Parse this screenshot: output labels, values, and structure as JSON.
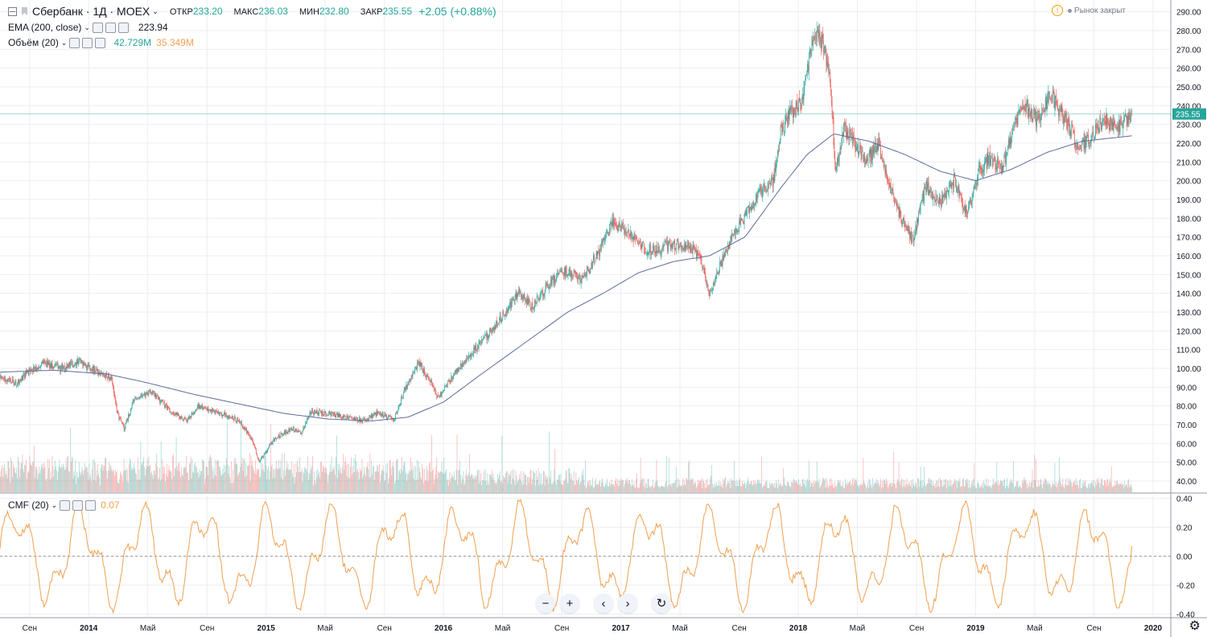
{
  "header": {
    "symbol": "Сбербанк · 1Д · MOEX",
    "open_label": "ОТКР",
    "open": "233.20",
    "high_label": "МАКС",
    "high": "236.03",
    "low_label": "МИН",
    "low": "232.80",
    "close_label": "ЗАКР",
    "close": "235.55",
    "change": "+2.05 (+0.88%)",
    "market_status": "Рынок закрыт"
  },
  "indicators": {
    "ema": {
      "name": "EMA (200, close)",
      "value": "223.94"
    },
    "volume": {
      "name": "Объём (20)",
      "value": "42.729M",
      "ma_value": "35.349M"
    },
    "cmf": {
      "name": "CMF (20)",
      "value": "0.07"
    }
  },
  "price_badge": "235.55",
  "colors": {
    "up": "#26a69a",
    "down": "#ef5350",
    "ema": "#5d6c9a",
    "cmf": "#f0a050",
    "grid": "#eceef3"
  },
  "chart_data": [
    {
      "type": "candlestick",
      "title": "Сбербанк · 1Д · MOEX",
      "ylim": [
        34,
        292
      ],
      "y_ticks": [
        "290.00",
        "280.00",
        "270.00",
        "260.00",
        "250.00",
        "240.00",
        "230.00",
        "220.00",
        "210.00",
        "200.00",
        "190.00",
        "180.00",
        "170.00",
        "160.00",
        "150.00",
        "140.00",
        "130.00",
        "120.00",
        "110.00",
        "100.00",
        "90.00",
        "80.00",
        "70.00",
        "60.00",
        "50.00",
        "40.00"
      ],
      "x_ticks": [
        "Сен",
        "2014",
        "Май",
        "Сен",
        "2015",
        "Май",
        "Сен",
        "2016",
        "Май",
        "Сен",
        "2017",
        "Май",
        "Сен",
        "2018",
        "Май",
        "Сен",
        "2019",
        "Май",
        "Сен",
        "2020"
      ],
      "x_tick_pos": [
        2013.667,
        2014.0,
        2014.333,
        2014.667,
        2015.0,
        2015.333,
        2015.667,
        2016.0,
        2016.333,
        2016.667,
        2017.0,
        2017.333,
        2017.667,
        2018.0,
        2018.333,
        2018.667,
        2019.0,
        2019.333,
        2019.667,
        2020.0
      ],
      "xlim": [
        2013.5,
        2020.1
      ],
      "last_date": 2019.88,
      "price_path": [
        [
          2013.5,
          95
        ],
        [
          2013.6,
          92
        ],
        [
          2013.65,
          98
        ],
        [
          2013.75,
          103
        ],
        [
          2013.85,
          100
        ],
        [
          2013.95,
          104
        ],
        [
          2014.05,
          98
        ],
        [
          2014.13,
          95
        ],
        [
          2014.16,
          76
        ],
        [
          2014.2,
          68
        ],
        [
          2014.25,
          82
        ],
        [
          2014.35,
          88
        ],
        [
          2014.45,
          78
        ],
        [
          2014.55,
          72
        ],
        [
          2014.62,
          80
        ],
        [
          2014.75,
          76
        ],
        [
          2014.85,
          72
        ],
        [
          2014.92,
          62
        ],
        [
          2014.96,
          50
        ],
        [
          2015.05,
          63
        ],
        [
          2015.15,
          68
        ],
        [
          2015.2,
          65
        ],
        [
          2015.25,
          77
        ],
        [
          2015.35,
          76
        ],
        [
          2015.45,
          74
        ],
        [
          2015.55,
          72
        ],
        [
          2015.62,
          76
        ],
        [
          2015.72,
          73
        ],
        [
          2015.78,
          88
        ],
        [
          2015.86,
          103
        ],
        [
          2015.93,
          92
        ],
        [
          2015.97,
          84
        ],
        [
          2016.05,
          96
        ],
        [
          2016.15,
          107
        ],
        [
          2016.25,
          118
        ],
        [
          2016.35,
          130
        ],
        [
          2016.42,
          140
        ],
        [
          2016.5,
          133
        ],
        [
          2016.6,
          146
        ],
        [
          2016.7,
          152
        ],
        [
          2016.78,
          147
        ],
        [
          2016.88,
          163
        ],
        [
          2016.95,
          178
        ],
        [
          2017.05,
          172
        ],
        [
          2017.15,
          162
        ],
        [
          2017.25,
          165
        ],
        [
          2017.35,
          166
        ],
        [
          2017.4,
          164
        ],
        [
          2017.45,
          158
        ],
        [
          2017.5,
          140
        ],
        [
          2017.55,
          153
        ],
        [
          2017.62,
          168
        ],
        [
          2017.7,
          182
        ],
        [
          2017.8,
          195
        ],
        [
          2017.86,
          200
        ],
        [
          2017.9,
          225
        ],
        [
          2017.95,
          237
        ],
        [
          2018.02,
          240
        ],
        [
          2018.06,
          265
        ],
        [
          2018.1,
          280
        ],
        [
          2018.14,
          272
        ],
        [
          2018.18,
          255
        ],
        [
          2018.21,
          205
        ],
        [
          2018.26,
          228
        ],
        [
          2018.3,
          222
        ],
        [
          2018.38,
          210
        ],
        [
          2018.45,
          220
        ],
        [
          2018.5,
          200
        ],
        [
          2018.6,
          175
        ],
        [
          2018.65,
          168
        ],
        [
          2018.72,
          198
        ],
        [
          2018.8,
          188
        ],
        [
          2018.88,
          200
        ],
        [
          2018.95,
          182
        ],
        [
          2019.02,
          205
        ],
        [
          2019.08,
          212
        ],
        [
          2019.15,
          207
        ],
        [
          2019.22,
          230
        ],
        [
          2019.28,
          240
        ],
        [
          2019.35,
          232
        ],
        [
          2019.42,
          246
        ],
        [
          2019.5,
          233
        ],
        [
          2019.58,
          218
        ],
        [
          2019.65,
          223
        ],
        [
          2019.72,
          233
        ],
        [
          2019.8,
          228
        ],
        [
          2019.88,
          235.55
        ]
      ],
      "ema_path": [
        [
          2013.5,
          98
        ],
        [
          2013.8,
          99
        ],
        [
          2014.1,
          97
        ],
        [
          2014.3,
          93
        ],
        [
          2014.6,
          86
        ],
        [
          2014.9,
          80
        ],
        [
          2015.1,
          76
        ],
        [
          2015.35,
          73
        ],
        [
          2015.6,
          72
        ],
        [
          2015.8,
          74
        ],
        [
          2016.0,
          82
        ],
        [
          2016.2,
          96
        ],
        [
          2016.45,
          113
        ],
        [
          2016.7,
          130
        ],
        [
          2016.9,
          140
        ],
        [
          2017.1,
          151
        ],
        [
          2017.3,
          157
        ],
        [
          2017.5,
          160
        ],
        [
          2017.7,
          170
        ],
        [
          2017.9,
          196
        ],
        [
          2018.05,
          214
        ],
        [
          2018.2,
          225
        ],
        [
          2018.4,
          221
        ],
        [
          2018.6,
          214
        ],
        [
          2018.8,
          205
        ],
        [
          2019.0,
          200
        ],
        [
          2019.2,
          206
        ],
        [
          2019.4,
          215
        ],
        [
          2019.6,
          221
        ],
        [
          2019.88,
          223.94
        ]
      ],
      "volume_series": {
        "name": "Объём (20)",
        "last": "42.729M",
        "ma": "35.349M"
      }
    },
    {
      "type": "line",
      "title": "CMF (20)",
      "ylim": [
        -0.42,
        0.42
      ],
      "y_ticks": [
        "0.40",
        "0.20",
        "0.00",
        "-0.20",
        "-0.40"
      ],
      "baseline": 0,
      "last_value": 0.07,
      "x_start": 2013.5,
      "x_end": 2019.88
    }
  ]
}
